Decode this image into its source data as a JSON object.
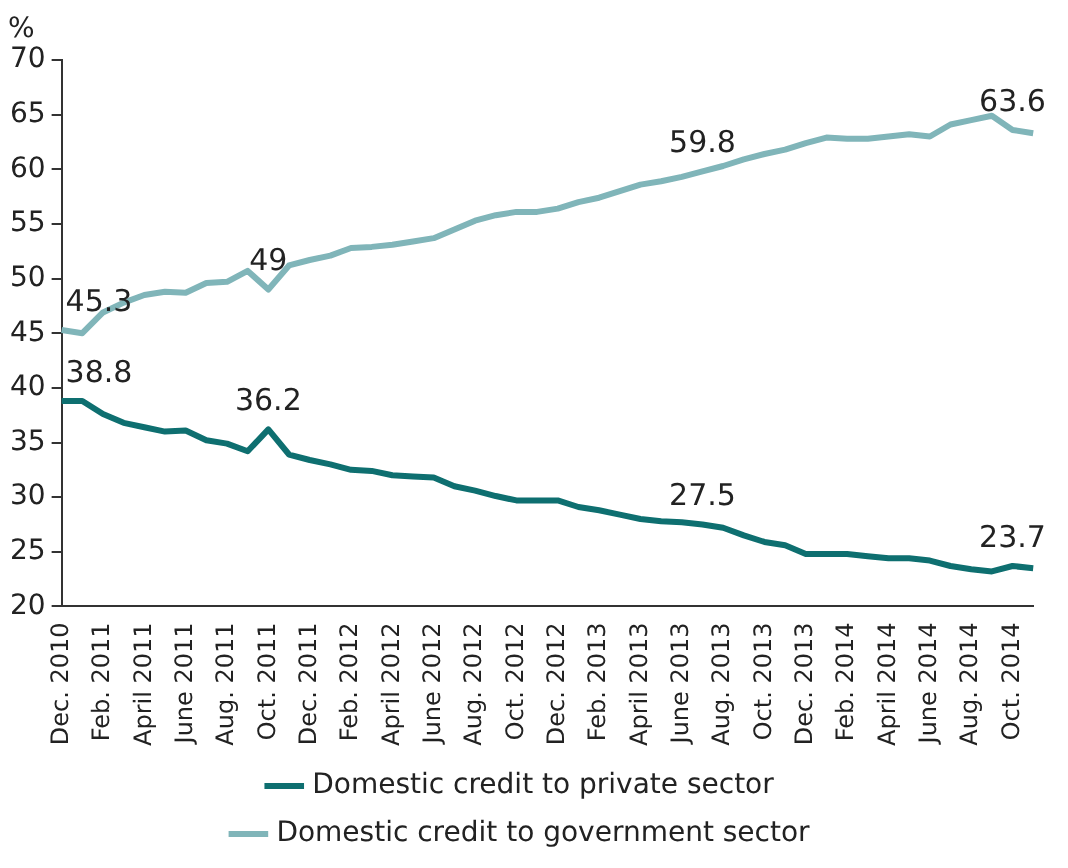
{
  "chart_data": {
    "type": "line",
    "ylabel": "%",
    "categories": [
      "Dec. 2010",
      null,
      "Feb. 2011",
      null,
      "April 2011",
      null,
      "June 2011",
      null,
      "Aug. 2011",
      null,
      "Oct. 2011",
      null,
      "Dec. 2011",
      null,
      "Feb. 2012",
      null,
      "April 2012",
      null,
      "June 2012",
      null,
      "Aug. 2012",
      null,
      "Oct. 2012",
      null,
      "Dec. 2012",
      null,
      "Feb. 2013",
      null,
      "April 2013",
      null,
      "June 2013",
      null,
      "Aug. 2013",
      null,
      "Oct. 2013",
      null,
      "Dec. 2013",
      null,
      "Feb. 2014",
      null,
      "April 2014",
      null,
      "June 2014",
      null,
      "Aug. 2014",
      null,
      "Oct. 2014",
      null
    ],
    "series": [
      {
        "name": "Domestic credit to private sector",
        "color": "#0e6f70",
        "values": [
          38.8,
          38.8,
          37.6,
          36.8,
          36.4,
          36.0,
          36.1,
          35.2,
          34.9,
          34.2,
          36.2,
          33.9,
          33.4,
          33.0,
          32.5,
          32.4,
          32.0,
          31.9,
          31.8,
          31.0,
          30.6,
          30.1,
          29.7,
          29.7,
          29.7,
          29.1,
          28.8,
          28.4,
          28.0,
          27.8,
          27.7,
          27.5,
          27.2,
          26.5,
          25.9,
          25.6,
          24.8,
          24.8,
          24.8,
          24.6,
          24.4,
          24.4,
          24.2,
          23.7,
          23.4,
          23.2,
          23.7,
          23.5
        ],
        "value_labels": [
          "38.8",
          null,
          null,
          null,
          null,
          null,
          null,
          null,
          null,
          null,
          "36.2",
          null,
          null,
          null,
          null,
          null,
          null,
          null,
          null,
          null,
          null,
          null,
          null,
          null,
          null,
          null,
          null,
          null,
          null,
          null,
          null,
          "27.5",
          null,
          null,
          null,
          null,
          null,
          null,
          null,
          null,
          null,
          null,
          null,
          null,
          null,
          null,
          "23.7",
          null
        ]
      },
      {
        "name": "Domestic credit to government sector",
        "color": "#80b5b9",
        "values": [
          45.3,
          45.0,
          46.9,
          47.8,
          48.5,
          48.8,
          48.7,
          49.6,
          49.7,
          50.7,
          49.0,
          51.2,
          51.7,
          52.1,
          52.8,
          52.9,
          53.1,
          53.4,
          53.7,
          54.5,
          55.3,
          55.8,
          56.1,
          56.1,
          56.4,
          57.0,
          57.4,
          58.0,
          58.6,
          58.9,
          59.3,
          59.8,
          60.3,
          60.9,
          61.4,
          61.8,
          62.4,
          62.9,
          62.8,
          62.8,
          63.0,
          63.2,
          63.0,
          64.1,
          64.5,
          64.9,
          63.6,
          63.3
        ],
        "value_labels": [
          "45.3",
          null,
          null,
          null,
          null,
          null,
          null,
          null,
          null,
          null,
          "49",
          null,
          null,
          null,
          null,
          null,
          null,
          null,
          null,
          null,
          null,
          null,
          null,
          null,
          null,
          null,
          null,
          null,
          null,
          null,
          null,
          "59.8",
          null,
          null,
          null,
          null,
          null,
          null,
          null,
          null,
          null,
          null,
          null,
          null,
          null,
          null,
          "63.6",
          null
        ]
      }
    ],
    "ylim": [
      20,
      70
    ],
    "yticks": [
      20,
      25,
      30,
      35,
      40,
      45,
      50,
      55,
      60,
      65,
      70
    ],
    "grid": false,
    "legend": "bottom",
    "marker": "none",
    "line_style": "solid"
  }
}
